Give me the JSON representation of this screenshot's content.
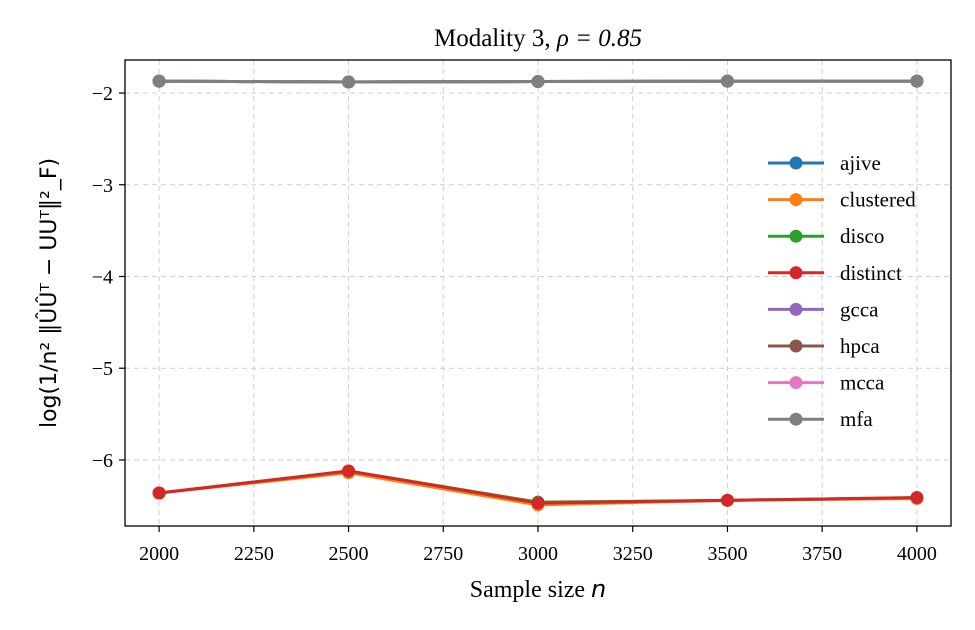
{
  "chart_data": {
    "type": "line",
    "title": "Modality 3, ",
    "title_math": "ρ = 0.85",
    "xlabel": "Sample size ",
    "xlabel_math": "n",
    "ylabel": "log(1/n² ‖ÛÛᵀ − UUᵀ‖²_F)",
    "x": [
      2000,
      2500,
      3000,
      3500,
      4000
    ],
    "xlim": [
      1910,
      4090
    ],
    "ylim": [
      -6.72,
      -1.64
    ],
    "xticks": [
      2000,
      2250,
      2500,
      2750,
      3000,
      3250,
      3500,
      3750,
      4000
    ],
    "yticks": [
      -6,
      -5,
      -4,
      -3,
      -2
    ],
    "xtick_labels": [
      "2000",
      "2250",
      "2500",
      "2750",
      "3000",
      "3250",
      "3500",
      "3750",
      "4000"
    ],
    "ytick_labels": [
      "−6",
      "−5",
      "−4",
      "−3",
      "−2"
    ],
    "grid": true,
    "legend_position": "right",
    "series": [
      {
        "name": "ajive",
        "color": "#1f77b4",
        "values": [
          -1.87,
          -1.88,
          -1.875,
          -1.87,
          -1.87
        ]
      },
      {
        "name": "clustered",
        "color": "#ff7f0e",
        "values": [
          -6.36,
          -6.14,
          -6.49,
          -6.44,
          -6.42
        ]
      },
      {
        "name": "disco",
        "color": "#2ca02c",
        "values": [
          -6.36,
          -6.12,
          -6.46,
          -6.44,
          -6.41
        ]
      },
      {
        "name": "distinct",
        "color": "#d62728",
        "values": [
          -6.36,
          -6.12,
          -6.47,
          -6.44,
          -6.41
        ]
      },
      {
        "name": "gcca",
        "color": "#9467bd",
        "values": [
          -1.87,
          -1.88,
          -1.875,
          -1.87,
          -1.87
        ]
      },
      {
        "name": "hpca",
        "color": "#8c564b",
        "values": [
          -1.87,
          -1.88,
          -1.875,
          -1.87,
          -1.87
        ]
      },
      {
        "name": "mcca",
        "color": "#e377c2",
        "values": [
          -1.87,
          -1.88,
          -1.875,
          -1.87,
          -1.87
        ]
      },
      {
        "name": "mfa",
        "color": "#7f7f7f",
        "values": [
          -1.87,
          -1.88,
          -1.875,
          -1.87,
          -1.87
        ]
      }
    ]
  }
}
